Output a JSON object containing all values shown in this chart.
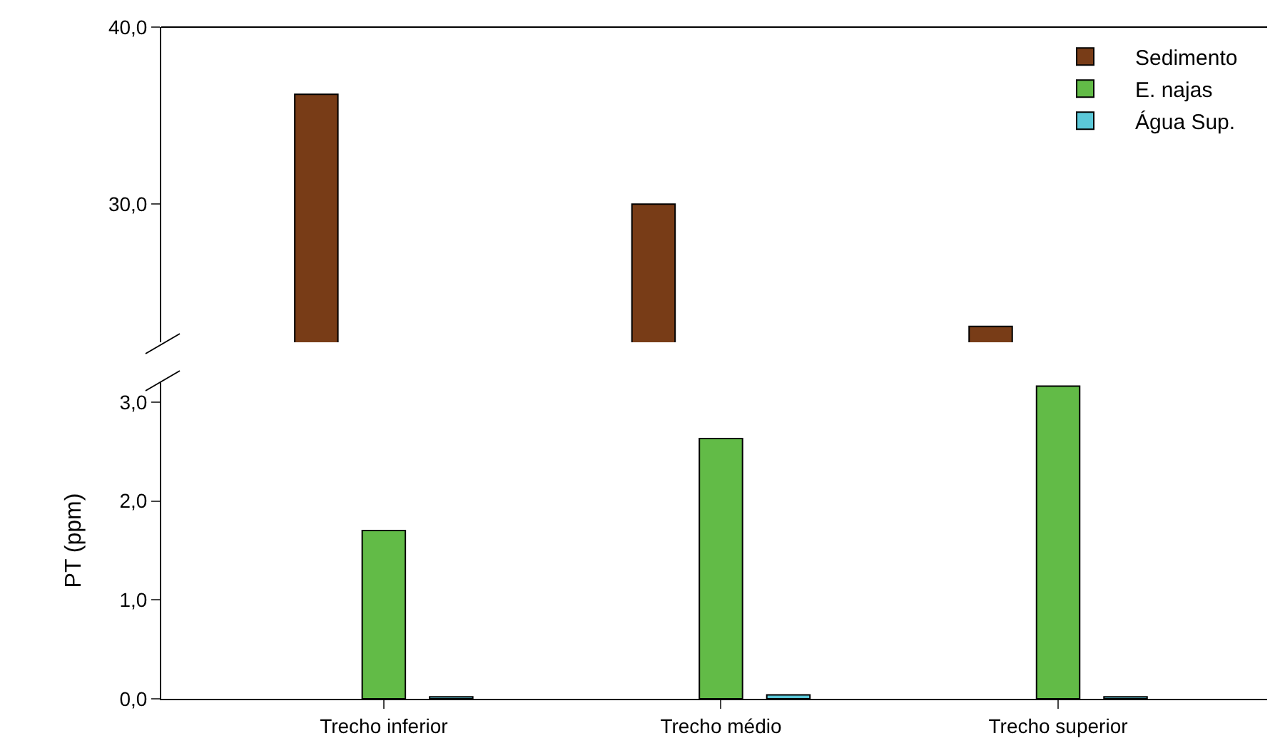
{
  "chart_data": [
    {
      "type": "bar",
      "categories": [
        null,
        null,
        null
      ],
      "series": [
        {
          "name": "Sedimento",
          "color": "#783c17",
          "values": [
            36.2,
            30.0,
            23.1
          ]
        },
        {
          "name": "E. najas",
          "color": "#62bb47",
          "values": [
            null,
            null,
            null
          ]
        },
        {
          "name": "Água Sup.",
          "color": "#5bc8d8",
          "values": [
            null,
            null,
            null
          ]
        }
      ],
      "ylim": [
        22.2,
        40
      ],
      "yticks": [
        {
          "value": 30,
          "label": "30,0"
        },
        {
          "value": 40,
          "label": "40,0"
        }
      ],
      "tick_labels": "y",
      "legend": "top right",
      "grid": false
    },
    {
      "type": "bar",
      "categories": [
        "Trecho inferior",
        "Trecho médio",
        "Trecho superior"
      ],
      "ylabel": "PT (ppm)",
      "series": [
        {
          "color": "#783c17",
          "values": [
            null,
            null,
            null
          ]
        },
        {
          "color": "#62bb47",
          "values": [
            1.7,
            2.63,
            3.16
          ]
        },
        {
          "color": "#5bc8d8",
          "values": [
            0.02,
            0.04,
            0.02
          ]
        }
      ],
      "ylim": [
        0,
        3.2
      ],
      "yticks": [
        {
          "value": 0,
          "label": "0,0"
        },
        {
          "value": 1,
          "label": "1,0"
        },
        {
          "value": 2,
          "label": "2,0"
        },
        {
          "value": 3,
          "label": "3,0"
        }
      ],
      "legend": false,
      "grid": false
    }
  ]
}
